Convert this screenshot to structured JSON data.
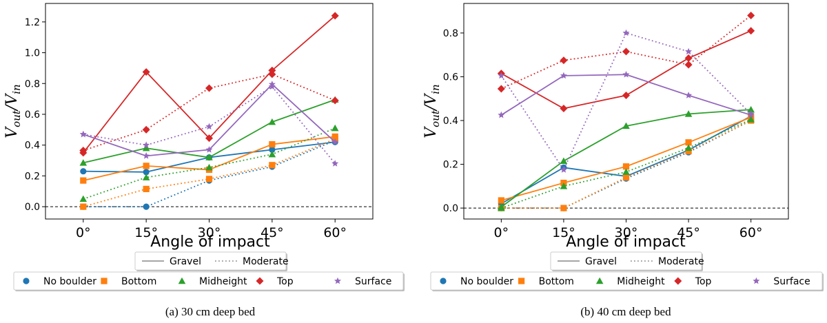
{
  "chart_data": [
    {
      "type": "line",
      "caption": "(a) 30 cm deep bed",
      "xlabel": "Angle of impact",
      "ylabel_main": "V",
      "ylabel_sub1": "out",
      "ylabel_sub2": "in",
      "categories": [
        "0°",
        "15°",
        "30°",
        "45°",
        "60°"
      ],
      "ylim": [
        -0.08,
        1.32
      ],
      "yticks": [
        0.0,
        0.2,
        0.4,
        0.6,
        0.8,
        1.0,
        1.2
      ],
      "ytick_labels": [
        "0.0",
        "0.2",
        "0.4",
        "0.6",
        "0.8",
        "1.0",
        "1.2"
      ],
      "reference_line": 0.0,
      "series": [
        {
          "name": "No boulder",
          "bed": "Gravel",
          "values": [
            0.23,
            0.225,
            0.32,
            0.37,
            0.42
          ]
        },
        {
          "name": "No boulder",
          "bed": "Moderate",
          "values": [
            0.0,
            0.0,
            0.17,
            0.26,
            0.43
          ]
        },
        {
          "name": "Bottom",
          "bed": "Gravel",
          "values": [
            0.17,
            0.265,
            0.24,
            0.405,
            0.455
          ]
        },
        {
          "name": "Bottom",
          "bed": "Moderate",
          "values": [
            0.0,
            0.115,
            0.18,
            0.27,
            0.44
          ]
        },
        {
          "name": "Midheight",
          "bed": "Gravel",
          "values": [
            0.285,
            0.38,
            0.32,
            0.55,
            0.695
          ]
        },
        {
          "name": "Midheight",
          "bed": "Moderate",
          "values": [
            0.05,
            0.19,
            0.255,
            0.34,
            0.51
          ]
        },
        {
          "name": "Top",
          "bed": "Gravel",
          "values": [
            0.35,
            0.875,
            0.445,
            0.885,
            1.24
          ]
        },
        {
          "name": "Top",
          "bed": "Moderate",
          "values": [
            0.365,
            0.5,
            0.77,
            0.86,
            0.69
          ]
        },
        {
          "name": "Surface",
          "bed": "Gravel",
          "values": [
            0.47,
            0.33,
            0.37,
            0.795,
            0.42
          ]
        },
        {
          "name": "Surface",
          "bed": "Moderate",
          "values": [
            0.47,
            0.4,
            0.52,
            0.78,
            0.28
          ]
        }
      ]
    },
    {
      "type": "line",
      "caption": "(b) 40 cm deep bed",
      "xlabel": "Angle of impact",
      "ylabel_main": "V",
      "ylabel_sub1": "out",
      "ylabel_sub2": "in",
      "categories": [
        "0°",
        "15°",
        "30°",
        "45°",
        "60°"
      ],
      "ylim": [
        -0.05,
        0.935
      ],
      "yticks": [
        0.0,
        0.2,
        0.4,
        0.6,
        0.8
      ],
      "ytick_labels": [
        "0.0",
        "0.2",
        "0.4",
        "0.6",
        "0.8"
      ],
      "reference_line": 0.0,
      "series": [
        {
          "name": "No boulder",
          "bed": "Gravel",
          "values": [
            0.02,
            0.185,
            0.145,
            0.265,
            0.42
          ]
        },
        {
          "name": "No boulder",
          "bed": "Moderate",
          "values": [
            0.0,
            0.0,
            0.135,
            0.255,
            0.4
          ]
        },
        {
          "name": "Bottom",
          "bed": "Gravel",
          "values": [
            0.035,
            0.115,
            0.19,
            0.3,
            0.415
          ]
        },
        {
          "name": "Bottom",
          "bed": "Moderate",
          "values": [
            0.0,
            0.0,
            0.14,
            0.26,
            0.4
          ]
        },
        {
          "name": "Midheight",
          "bed": "Gravel",
          "values": [
            0.005,
            0.215,
            0.375,
            0.43,
            0.45
          ]
        },
        {
          "name": "Midheight",
          "bed": "Moderate",
          "values": [
            0.0,
            0.1,
            0.165,
            0.275,
            0.405
          ]
        },
        {
          "name": "Top",
          "bed": "Gravel",
          "values": [
            0.615,
            0.455,
            0.515,
            0.685,
            0.81
          ]
        },
        {
          "name": "Top",
          "bed": "Moderate",
          "values": [
            0.545,
            0.675,
            0.715,
            0.655,
            0.88
          ]
        },
        {
          "name": "Surface",
          "bed": "Gravel",
          "values": [
            0.425,
            0.605,
            0.61,
            0.515,
            0.425
          ]
        },
        {
          "name": "Surface",
          "bed": "Moderate",
          "values": [
            0.605,
            0.175,
            0.8,
            0.715,
            0.43
          ]
        }
      ]
    }
  ],
  "legend_styles": {
    "entries": [
      {
        "label": "Gravel",
        "dash": "solid"
      },
      {
        "label": "Moderate",
        "dash": "dotted"
      }
    ]
  },
  "legend_markers": {
    "entries": [
      {
        "label": "No boulder",
        "color": "#1f77b4",
        "marker": "circle"
      },
      {
        "label": "Bottom",
        "color": "#ff7f0e",
        "marker": "square"
      },
      {
        "label": "Midheight",
        "color": "#2ca02c",
        "marker": "triangle"
      },
      {
        "label": "Top",
        "color": "#d62728",
        "marker": "diamond"
      },
      {
        "label": "Surface",
        "color": "#9467bd",
        "marker": "star"
      }
    ]
  }
}
